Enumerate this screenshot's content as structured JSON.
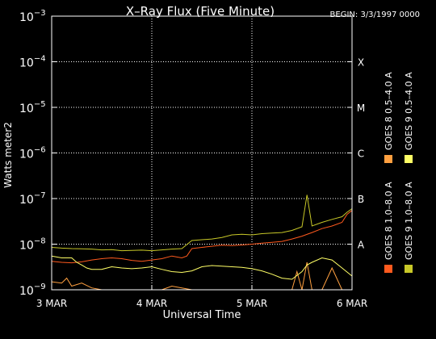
{
  "chart_data": {
    "type": "line",
    "title": "X–Ray Flux (Five Minute)",
    "begin_label": "BEGIN: 3/3/1997 0000",
    "xlabel": "Universal Time",
    "ylabel": "Watts meter2",
    "y_scale": "log",
    "ylim": [
      1e-09,
      0.001
    ],
    "xlim_days": [
      0,
      3
    ],
    "x_tick_labels": [
      "3 MAR",
      "4 MAR",
      "5 MAR",
      "6 MAR"
    ],
    "y_tick_labels": [
      {
        "base": "10",
        "exp": "−9",
        "value": 1e-09
      },
      {
        "base": "10",
        "exp": "−8",
        "value": 1e-08
      },
      {
        "base": "10",
        "exp": "−7",
        "value": 1e-07
      },
      {
        "base": "10",
        "exp": "−6",
        "value": 1e-06
      },
      {
        "base": "10",
        "exp": "−5",
        "value": 1e-05
      },
      {
        "base": "10",
        "exp": "−4",
        "value": 0.0001
      },
      {
        "base": "10",
        "exp": "−3",
        "value": 0.001
      }
    ],
    "flare_classes": [
      {
        "label": "A",
        "value": 1e-08
      },
      {
        "label": "B",
        "value": 1e-07
      },
      {
        "label": "C",
        "value": 1e-06
      },
      {
        "label": "M",
        "value": 1e-05
      },
      {
        "label": "X",
        "value": 0.0001
      }
    ],
    "grid": {
      "horizontal": true,
      "vertical": true,
      "style": "dotted"
    },
    "legend": [
      {
        "label": "GOES 8  1.0–8.0 A",
        "color": "#ff5a1e"
      },
      {
        "label": "GOES 8  0.5–4.0 A",
        "color": "#ffa040"
      },
      {
        "label": "GOES 9  1.0–8.0 A",
        "color": "#c8c828"
      },
      {
        "label": "GOES 9  0.5–4.0 A",
        "color": "#ffff66"
      }
    ],
    "series": [
      {
        "name": "GOES 8  1.0–8.0 A",
        "color": "#ff5a1e",
        "x": [
          0,
          0.1,
          0.2,
          0.3,
          0.4,
          0.5,
          0.6,
          0.7,
          0.8,
          0.9,
          1.0,
          1.1,
          1.2,
          1.3,
          1.35,
          1.4,
          1.5,
          1.6,
          1.7,
          1.8,
          1.9,
          2.0,
          2.1,
          2.2,
          2.3,
          2.4,
          2.5,
          2.6,
          2.7,
          2.8,
          2.9,
          2.95,
          3.0
        ],
        "y": [
          4.2e-09,
          4e-09,
          3.9e-09,
          4.1e-09,
          4.5e-09,
          4.8e-09,
          5e-09,
          4.8e-09,
          4.4e-09,
          4.2e-09,
          4.5e-09,
          4.8e-09,
          5.5e-09,
          5e-09,
          5.5e-09,
          8e-09,
          8.5e-09,
          9e-09,
          9.5e-09,
          9.3e-09,
          9.6e-09,
          1e-08,
          1.05e-08,
          1.1e-08,
          1.15e-08,
          1.3e-08,
          1.5e-08,
          1.8e-08,
          2.2e-08,
          2.5e-08,
          3e-08,
          4.5e-08,
          5.5e-08
        ]
      },
      {
        "name": "GOES 8  0.5–4.0 A",
        "color": "#ffa040",
        "x": [
          0,
          0.1,
          0.15,
          0.2,
          0.3,
          0.4,
          0.5,
          0.6,
          0.7,
          0.8,
          0.9,
          1.0,
          1.1,
          1.2,
          1.3,
          1.4,
          1.5,
          1.6,
          1.7,
          1.8,
          1.9,
          2.0,
          2.1,
          2.2,
          2.3,
          2.4,
          2.45,
          2.5,
          2.55,
          2.6,
          2.7,
          2.8,
          2.9,
          3.0
        ],
        "y": [
          1.5e-09,
          1.4e-09,
          1.8e-09,
          1.2e-09,
          1.4e-09,
          1.1e-09,
          1e-09,
          1e-09,
          1e-09,
          1e-09,
          1e-09,
          1e-09,
          1e-09,
          1.2e-09,
          1.1e-09,
          1e-09,
          1e-09,
          1e-09,
          1e-09,
          1e-09,
          1e-09,
          1e-09,
          1e-09,
          1e-09,
          1e-09,
          1e-09,
          2.5e-09,
          1e-09,
          4e-09,
          1e-09,
          1e-09,
          3e-09,
          1e-09,
          1e-09
        ]
      },
      {
        "name": "GOES 9  1.0–8.0 A",
        "color": "#c8c828",
        "x": [
          0,
          0.1,
          0.2,
          0.3,
          0.4,
          0.5,
          0.6,
          0.7,
          0.8,
          0.9,
          1.0,
          1.1,
          1.2,
          1.3,
          1.4,
          1.5,
          1.6,
          1.7,
          1.8,
          1.9,
          2.0,
          2.1,
          2.2,
          2.3,
          2.4,
          2.5,
          2.55,
          2.6,
          2.7,
          2.8,
          2.9,
          2.95,
          3.0
        ],
        "y": [
          8.5e-09,
          8.2e-09,
          8e-09,
          7.9e-09,
          7.8e-09,
          7.5e-09,
          7.6e-09,
          7.2e-09,
          7.3e-09,
          7.4e-09,
          7.2e-09,
          7.5e-09,
          7.8e-09,
          8e-09,
          1.2e-08,
          1.25e-08,
          1.3e-08,
          1.4e-08,
          1.6e-08,
          1.65e-08,
          1.6e-08,
          1.7e-08,
          1.75e-08,
          1.8e-08,
          2e-08,
          2.4e-08,
          1.2e-07,
          2.5e-08,
          3e-08,
          3.5e-08,
          4e-08,
          5e-08,
          6e-08
        ]
      },
      {
        "name": "GOES 9  0.5–4.0 A",
        "color": "#ffff66",
        "x": [
          0,
          0.1,
          0.2,
          0.25,
          0.3,
          0.35,
          0.4,
          0.5,
          0.6,
          0.7,
          0.8,
          0.9,
          1.0,
          1.1,
          1.2,
          1.3,
          1.4,
          1.5,
          1.6,
          1.7,
          1.8,
          1.9,
          2.0,
          2.1,
          2.2,
          2.3,
          2.4,
          2.5,
          2.55,
          2.6,
          2.7,
          2.8,
          2.9,
          3.0
        ],
        "y": [
          5.5e-09,
          5e-09,
          5e-09,
          4e-09,
          3.5e-09,
          3e-09,
          2.8e-09,
          2.8e-09,
          3.2e-09,
          3e-09,
          2.9e-09,
          3e-09,
          3.2e-09,
          2.8e-09,
          2.5e-09,
          2.4e-09,
          2.6e-09,
          3.2e-09,
          3.4e-09,
          3.3e-09,
          3.2e-09,
          3.1e-09,
          2.9e-09,
          2.6e-09,
          2.2e-09,
          1.8e-09,
          1.7e-09,
          2.5e-09,
          3.5e-09,
          4e-09,
          5e-09,
          4.5e-09,
          3e-09,
          2e-09
        ]
      }
    ]
  }
}
